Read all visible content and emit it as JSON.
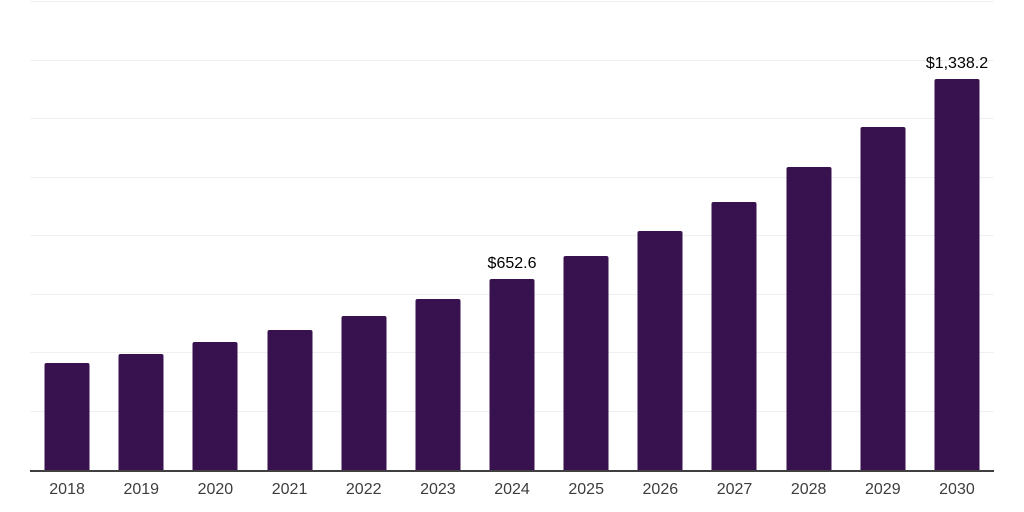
{
  "chart_data": {
    "type": "bar",
    "title": "",
    "xlabel": "",
    "ylabel": "",
    "categories": [
      "2018",
      "2019",
      "2020",
      "2021",
      "2022",
      "2023",
      "2024",
      "2025",
      "2026",
      "2027",
      "2028",
      "2029",
      "2030"
    ],
    "values": [
      365,
      395,
      439,
      477,
      528,
      585,
      652.6,
      731,
      816,
      918,
      1036,
      1173,
      1338.2
    ],
    "value_labels": [
      null,
      null,
      null,
      null,
      null,
      null,
      "$652.6",
      null,
      null,
      null,
      null,
      null,
      "$1,338.2"
    ],
    "ylim": [
      0,
      1600
    ],
    "grid_step": 200,
    "grid": true,
    "legend": false,
    "colors": {
      "bar": "#38124E",
      "gridline": "#f0f0f0",
      "axis": "#3f3f3f",
      "tick_label": "#3d3d3d",
      "value_label": "#000000",
      "background": "#ffffff"
    }
  }
}
